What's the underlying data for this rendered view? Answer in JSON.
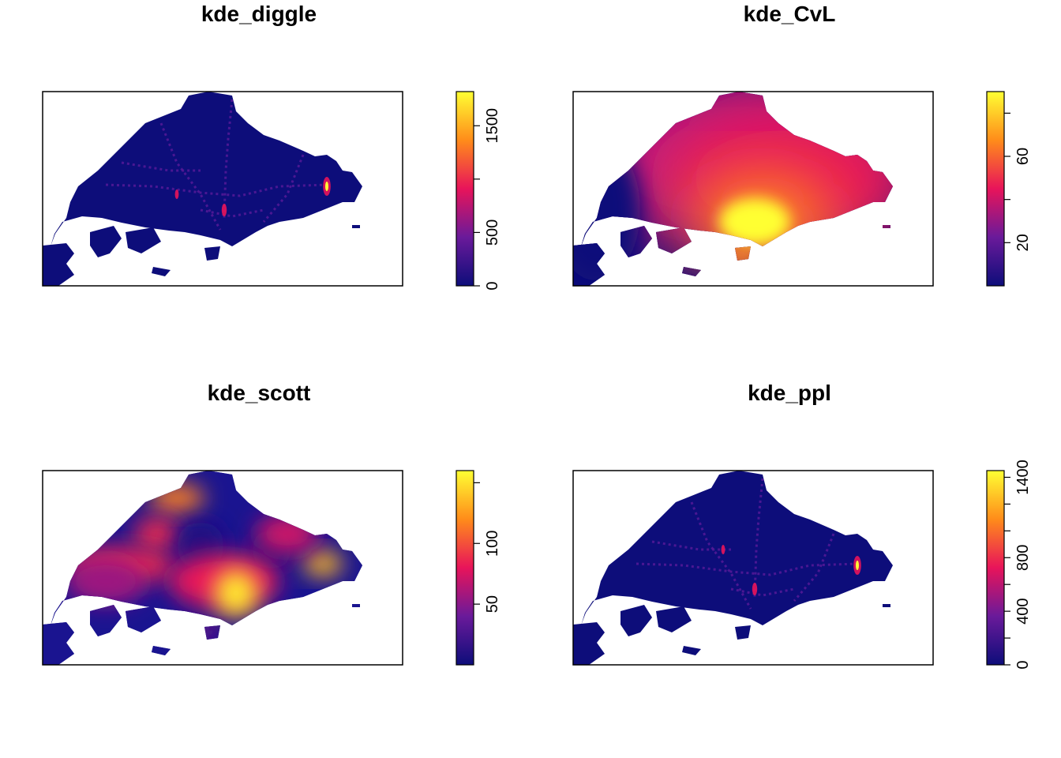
{
  "chart_data": [
    {
      "type": "heatmap",
      "title": "kde_diggle",
      "colorbar": {
        "min": 0,
        "max": 1820,
        "ticks": [
          0,
          500,
          1000,
          1500
        ],
        "tick_labels": [
          "0",
          "500",
          "",
          "1500"
        ]
      },
      "pattern": "fine network of hotspots along road corridors, strongest spot in the east",
      "colors": {
        "low": "#0d0d7a",
        "mid": "#e8145a",
        "high": "#ffff33"
      }
    },
    {
      "type": "heatmap",
      "title": "kde_CvL",
      "colorbar": {
        "min": 0,
        "max": 90,
        "ticks": [
          20,
          40,
          60,
          80
        ],
        "tick_labels": [
          "20",
          "",
          "60",
          ""
        ]
      },
      "pattern": "very smooth surface, peak in south-central area",
      "colors": {
        "low": "#0d0d7a",
        "mid": "#e8145a",
        "high": "#ffff33"
      }
    },
    {
      "type": "heatmap",
      "title": "kde_scott",
      "colorbar": {
        "min": 0,
        "max": 160,
        "ticks": [
          50,
          100,
          150
        ],
        "tick_labels": [
          "50",
          "100",
          ""
        ]
      },
      "pattern": "moderately smooth, several blobs; peaks south-central and east",
      "colors": {
        "low": "#0d0d7a",
        "mid": "#e8145a",
        "high": "#ffff33"
      }
    },
    {
      "type": "heatmap",
      "title": "kde_ppl",
      "colorbar": {
        "min": 0,
        "max": 1450,
        "ticks": [
          0,
          200,
          400,
          600,
          800,
          1000,
          1200,
          1400
        ],
        "tick_labels": [
          "0",
          "",
          "400",
          "",
          "800",
          "",
          "",
          "1400"
        ]
      },
      "pattern": "fine network similar to kde_diggle, strongest spot in the east",
      "colors": {
        "low": "#0d0d7a",
        "mid": "#e8145a",
        "high": "#ffff33"
      }
    }
  ]
}
